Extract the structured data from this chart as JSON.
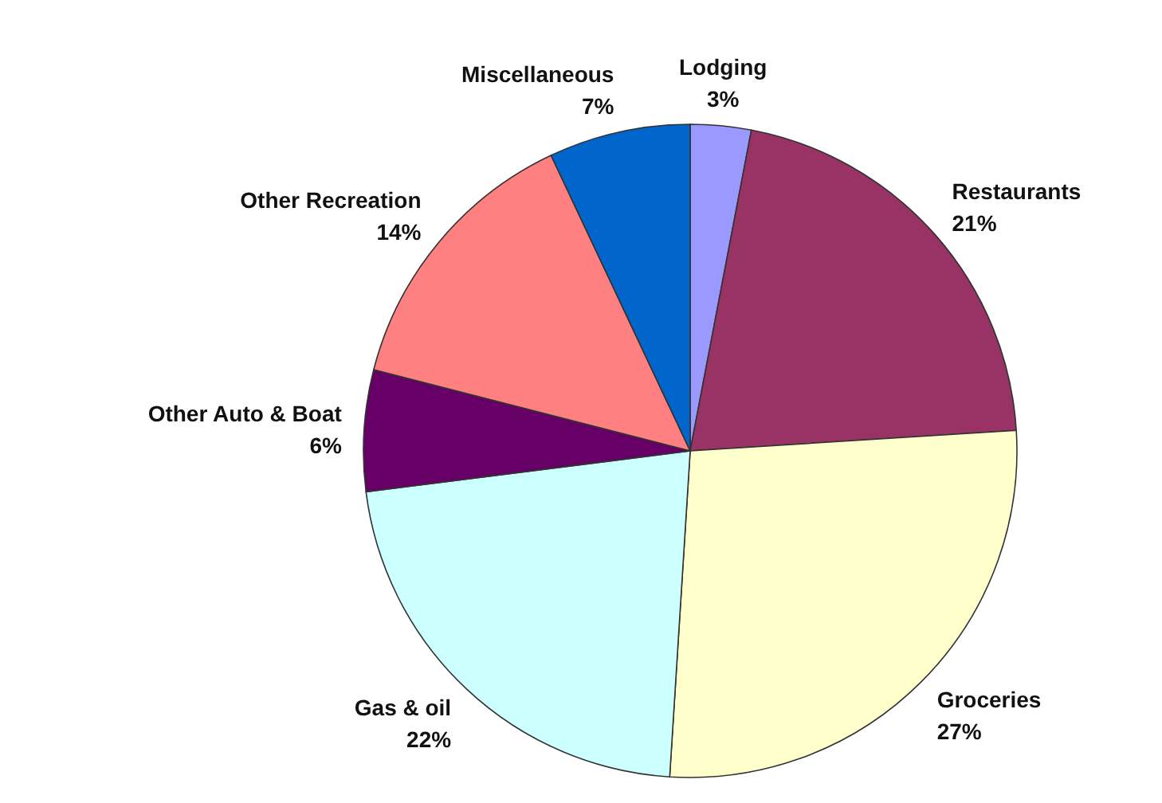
{
  "chart_data": {
    "type": "pie",
    "categories": [
      "Lodging",
      "Restaurants",
      "Groceries",
      "Gas & oil",
      "Other Auto & Boat",
      "Other Recreation",
      "Miscellaneous"
    ],
    "values": [
      3,
      21,
      27,
      22,
      6,
      14,
      7
    ],
    "colors": [
      "#9999ff",
      "#993366",
      "#ffffcc",
      "#ccffff",
      "#660066",
      "#ff8080",
      "#0066cc"
    ],
    "value_labels": [
      "3%",
      "21%",
      "27%",
      "22%",
      "6%",
      "14%",
      "7%"
    ]
  }
}
